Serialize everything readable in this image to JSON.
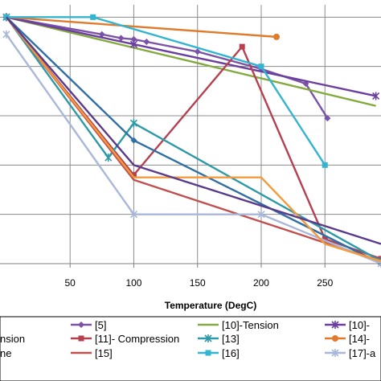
{
  "chart_data": {
    "type": "line",
    "xlabel": "Temperature (DegC)",
    "ylabel": "",
    "xlim": [
      -5,
      294
    ],
    "ylim": [
      0,
      1.05
    ],
    "x_ticks": [
      "50",
      "100",
      "150",
      "200",
      "250"
    ],
    "x_tick_values": [
      50,
      100,
      150,
      200,
      250
    ],
    "y_tick_values": [
      0.2,
      0.4,
      0.6,
      0.8,
      1.0
    ],
    "grid": "both",
    "legend": "bottom",
    "series": [
      {
        "name": "[5]",
        "color": "#7a52a8",
        "marker": "diamond",
        "x": [
          0,
          75,
          90,
          100,
          110,
          150,
          200,
          235,
          252
        ],
        "y": [
          1.0,
          0.93,
          0.915,
          0.91,
          0.9,
          0.86,
          0.79,
          0.73,
          0.59
        ]
      },
      {
        "name": "[10]-Tension",
        "color": "#83aa3e",
        "marker": "none",
        "x": [
          0,
          290
        ],
        "y": [
          1.0,
          0.64
        ]
      },
      {
        "name": "[10]-",
        "color": "#6b3f9e",
        "marker": "x",
        "x": [
          0,
          100,
          290
        ],
        "y": [
          1.0,
          0.89,
          0.68
        ]
      },
      {
        "name": "[11]- Compression",
        "color": "#b5404f",
        "marker": "square",
        "x": [
          0,
          100,
          185,
          250,
          294
        ],
        "y": [
          1.0,
          0.36,
          0.88,
          0.1,
          0.02
        ]
      },
      {
        "name": "[13]",
        "color": "#2e9aa8",
        "marker": "x",
        "x": [
          0,
          80,
          100,
          294
        ],
        "y": [
          1.0,
          0.43,
          0.57,
          0.01
        ]
      },
      {
        "name": "[14]-",
        "color": "#e07b2c",
        "marker": "circle",
        "x": [
          0,
          212
        ],
        "y": [
          1.0,
          0.92
        ]
      },
      {
        "name": "ne",
        "color": "#2f6ea6",
        "marker": "diamond",
        "x": [
          0,
          100,
          294
        ],
        "y": [
          1.0,
          0.5,
          0.0
        ]
      },
      {
        "name": "[15]",
        "color": "#c0504d",
        "marker": "none",
        "x": [
          0,
          100,
          294
        ],
        "y": [
          1.0,
          0.34,
          0.01
        ]
      },
      {
        "name": "[16]",
        "color": "#33b4d0",
        "marker": "square",
        "x": [
          0,
          68,
          200,
          250
        ],
        "y": [
          1.0,
          1.0,
          0.8,
          0.4
        ]
      },
      {
        "name": "[17]-a",
        "color": "#a9b7d9",
        "marker": "x",
        "x": [
          0,
          100,
          200,
          294
        ],
        "y": [
          0.93,
          0.2,
          0.2,
          0.0
        ]
      },
      {
        "name": "",
        "color": "#f39a3c",
        "marker": "none",
        "x": [
          0,
          100,
          200,
          250,
          294
        ],
        "y": [
          1.0,
          0.35,
          0.35,
          0.08,
          0.01
        ]
      },
      {
        "name": "",
        "color": "#5a3a8a",
        "marker": "none",
        "x": [
          0,
          100,
          294
        ],
        "y": [
          1.0,
          0.4,
          0.08
        ]
      }
    ]
  },
  "legend_items": [
    {
      "label": "[5]",
      "color": "#7a52a8",
      "marker": "diamond"
    },
    {
      "label": "[10]-Tension",
      "color": "#83aa3e",
      "marker": "none"
    },
    {
      "label": "[10]-",
      "color": "#6b3f9e",
      "marker": "x"
    },
    {
      "label": "nsion",
      "color": "",
      "marker": "none"
    },
    {
      "label": "[11]- Compression",
      "color": "#b5404f",
      "marker": "square"
    },
    {
      "label": "[13]",
      "color": "#2e9aa8",
      "marker": "x"
    },
    {
      "label": "[14]-",
      "color": "#e07b2c",
      "marker": "circle"
    },
    {
      "label": "ne",
      "color": "",
      "marker": "none"
    },
    {
      "label": "[15]",
      "color": "#c0504d",
      "marker": "none"
    },
    {
      "label": "[16]",
      "color": "#33b4d0",
      "marker": "square"
    },
    {
      "label": "[17]-a",
      "color": "#a9b7d9",
      "marker": "x"
    }
  ]
}
